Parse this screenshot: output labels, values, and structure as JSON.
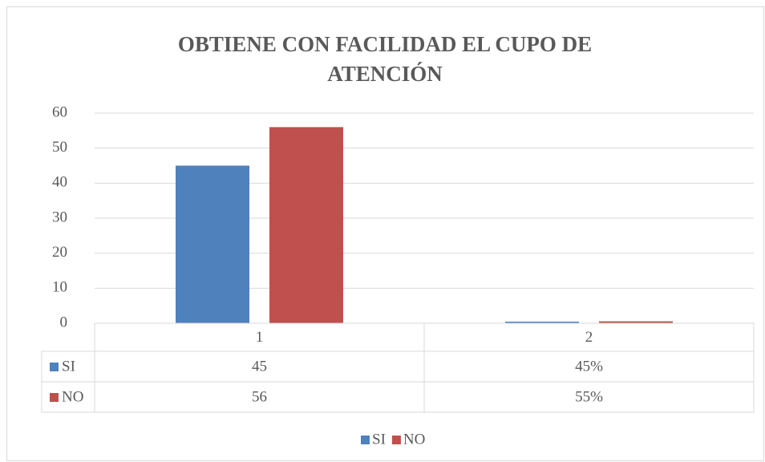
{
  "chart_data": {
    "type": "bar",
    "title_lines": [
      "OBTIENE CON FACILIDAD EL CUPO DE",
      "ATENCIÓN"
    ],
    "categories": [
      "1",
      "2"
    ],
    "series": [
      {
        "name": "SI",
        "color": "#4f81bd",
        "values": [
          45,
          0.45
        ],
        "value_labels": [
          "45",
          "45%"
        ]
      },
      {
        "name": "NO",
        "color": "#c0504d",
        "values": [
          56,
          0.55
        ],
        "value_labels": [
          "56",
          "55%"
        ]
      }
    ],
    "ylim": [
      0,
      60
    ],
    "yticks": [
      0,
      10,
      20,
      30,
      40,
      50,
      60
    ],
    "grid": true,
    "legend": "bottom",
    "data_table": true
  }
}
